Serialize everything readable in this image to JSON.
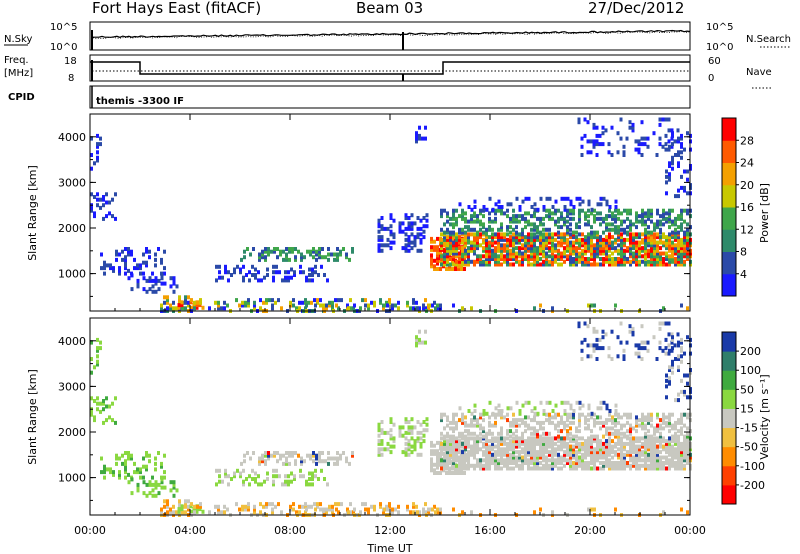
{
  "header": {
    "station": "Fort Hays East (fitACF)",
    "beam": "Beam 03",
    "date": "27/Dec/2012"
  },
  "status_panels": {
    "nsky_label": "N.Sky",
    "nsearch_label": "N.Search",
    "noise_ticks": [
      "10^5",
      "10^0"
    ],
    "freq_label": "Freq.",
    "freq_unit": "[MHz]",
    "freq_ticks": [
      "18",
      "8"
    ],
    "nave_label": "Nave",
    "nave_ticks": [
      "60",
      "0"
    ],
    "cpid_label": "CPID",
    "cpid_value": "themis -3300 IF"
  },
  "chart_data": [
    {
      "type": "heatmap",
      "name": "power",
      "ylabel": "Slant Range [km]",
      "y_ticks": [
        "1000",
        "2000",
        "3000",
        "4000"
      ],
      "ylim": [
        180,
        4500
      ],
      "colorbar_label": "Power [dB]",
      "colorbar_ticks": [
        "4",
        "8",
        "12",
        "16",
        "20",
        "24",
        "28"
      ],
      "colors": [
        "#1a1aff",
        "#2b4aa8",
        "#2e8a6a",
        "#3fa64a",
        "#c8c800",
        "#f4a000",
        "#ff5a00",
        "#ff0000"
      ]
    },
    {
      "type": "heatmap",
      "name": "velocity",
      "ylabel": "Slant Range [km]",
      "y_ticks": [
        "1000",
        "2000",
        "3000",
        "4000"
      ],
      "ylim": [
        180,
        4500
      ],
      "colorbar_label": "Velocity [m s⁻¹]",
      "colorbar_ticks": [
        "200",
        "100",
        "50",
        "15",
        "-15",
        "-50",
        "-100",
        "-200"
      ],
      "colors": [
        "#1a3aa8",
        "#2f7e6a",
        "#3faa3f",
        "#8ad840",
        "#c8c8c0",
        "#f0c040",
        "#ff8c00",
        "#ff4000",
        "#ff0000"
      ]
    }
  ],
  "x_axis": {
    "label": "Time UT",
    "ticks": [
      "00:00",
      "04:00",
      "08:00",
      "12:00",
      "16:00",
      "20:00",
      "00:00"
    ]
  }
}
